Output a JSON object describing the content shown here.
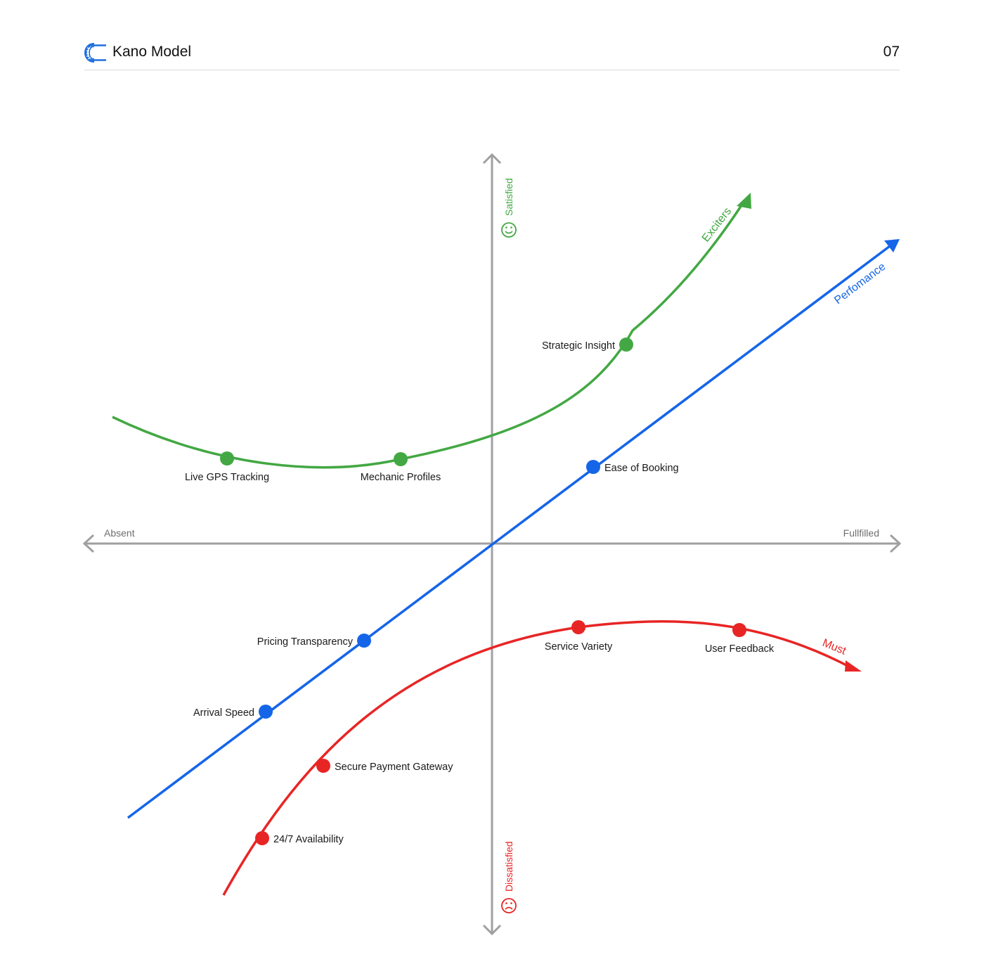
{
  "header": {
    "logo_icon": "tire-logo-icon",
    "title": "Kano Model",
    "page_number": "07"
  },
  "axes": {
    "x_negative": "Absent",
    "x_positive": "Fullfilled",
    "y_positive": "Satisfied",
    "y_negative": "Dissatisfied",
    "y_positive_icon": "smiley-face-icon",
    "y_negative_icon": "sad-face-icon"
  },
  "curves": {
    "exciters": {
      "label": "Exciters",
      "color": "#43a843"
    },
    "performance": {
      "label": "Perfomance",
      "color": "#1565e8"
    },
    "must": {
      "label": "Must",
      "color": "#e82525"
    }
  },
  "features": {
    "live_gps": "Live GPS Tracking",
    "mechanic_profiles": "Mechanic Profiles",
    "strategic_insight": "Strategic Insight",
    "ease_of_booking": "Ease of Booking",
    "pricing_transparency": "Pricing Transparency",
    "arrival_speed": "Arrival Speed",
    "service_variety": "Service Variety",
    "user_feedback": "User Feedback",
    "secure_payment": "Secure Payment Gateway",
    "availability": "24/7 Availability"
  },
  "colors": {
    "axis": "#a0a0a0",
    "exciters": "#43a843",
    "performance": "#1565e8",
    "must": "#e82525",
    "brand": "#1f6fe0"
  }
}
